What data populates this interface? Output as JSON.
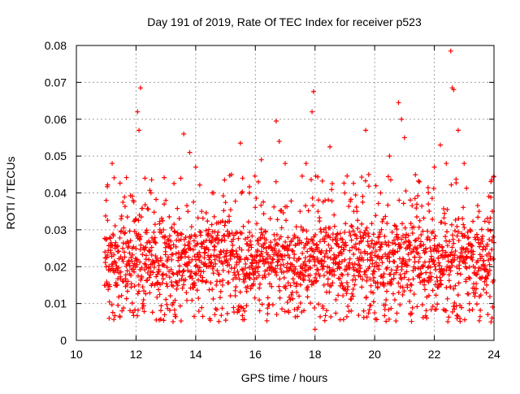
{
  "chart_data": {
    "type": "scatter",
    "title": "Day 191 of 2019, Rate Of TEC Index for receiver p523",
    "xlabel": "GPS time / hours",
    "ylabel": "ROTI / TECUs",
    "xlim": [
      10,
      24
    ],
    "ylim": [
      0,
      0.08
    ],
    "x_ticks": [
      10,
      12,
      14,
      16,
      18,
      20,
      22,
      24
    ],
    "x_tick_labels": [
      "10",
      "12",
      "14",
      "16",
      "18",
      "20",
      "22",
      "24"
    ],
    "y_ticks": [
      0,
      0.01,
      0.02,
      0.03,
      0.04,
      0.05,
      0.06,
      0.07,
      0.08
    ],
    "y_tick_labels": [
      "0",
      "0.01",
      "0.02",
      "0.03",
      "0.04",
      "0.05",
      "0.06",
      "0.07",
      "0.08"
    ],
    "grid": true,
    "marker": "+",
    "color": "#ff0000",
    "data_x_range": [
      10.95,
      24.0
    ],
    "typical_value_range": [
      0.005,
      0.04
    ],
    "series": [
      {
        "name": "ROTI",
        "points": [
          [
            11.0,
            0.038
          ],
          [
            11.0,
            0.02
          ],
          [
            11.05,
            0.015
          ],
          [
            11.1,
            0.006
          ],
          [
            11.2,
            0.048
          ],
          [
            11.3,
            0.025
          ],
          [
            11.5,
            0.033
          ],
          [
            11.7,
            0.015
          ],
          [
            11.9,
            0.038
          ],
          [
            12.05,
            0.062
          ],
          [
            12.1,
            0.057
          ],
          [
            12.15,
            0.0685
          ],
          [
            12.3,
            0.044
          ],
          [
            12.5,
            0.04
          ],
          [
            12.8,
            0.03
          ],
          [
            13.0,
            0.038
          ],
          [
            13.2,
            0.015
          ],
          [
            13.5,
            0.044
          ],
          [
            13.6,
            0.056
          ],
          [
            13.8,
            0.051
          ],
          [
            14.0,
            0.047
          ],
          [
            14.2,
            0.035
          ],
          [
            14.6,
            0.04
          ],
          [
            14.9,
            0.015
          ],
          [
            15.2,
            0.045
          ],
          [
            15.5,
            0.0535
          ],
          [
            15.8,
            0.04
          ],
          [
            16.1,
            0.043
          ],
          [
            16.2,
            0.049
          ],
          [
            16.5,
            0.033
          ],
          [
            16.7,
            0.0595
          ],
          [
            16.8,
            0.054
          ],
          [
            17.0,
            0.048
          ],
          [
            17.3,
            0.02
          ],
          [
            17.5,
            0.035
          ],
          [
            17.7,
            0.048
          ],
          [
            17.9,
            0.062
          ],
          [
            17.95,
            0.0675
          ],
          [
            18.0,
            0.003
          ],
          [
            18.1,
            0.035
          ],
          [
            18.3,
            0.015
          ],
          [
            18.5,
            0.0525
          ],
          [
            18.7,
            0.028
          ],
          [
            19.0,
            0.04
          ],
          [
            19.3,
            0.035
          ],
          [
            19.7,
            0.057
          ],
          [
            19.8,
            0.045
          ],
          [
            20.0,
            0.02
          ],
          [
            20.2,
            0.04
          ],
          [
            20.5,
            0.05
          ],
          [
            20.8,
            0.0645
          ],
          [
            20.9,
            0.06
          ],
          [
            21.0,
            0.055
          ],
          [
            21.2,
            0.007
          ],
          [
            21.5,
            0.043
          ],
          [
            21.8,
            0.037
          ],
          [
            22.0,
            0.047
          ],
          [
            22.2,
            0.053
          ],
          [
            22.4,
            0.048
          ],
          [
            22.55,
            0.0785
          ],
          [
            22.6,
            0.0685
          ],
          [
            22.65,
            0.068
          ],
          [
            22.8,
            0.057
          ],
          [
            23.0,
            0.048
          ],
          [
            23.2,
            0.03
          ],
          [
            23.5,
            0.035
          ],
          [
            23.8,
            0.03
          ],
          [
            23.9,
            0.005
          ],
          [
            24.0,
            0.0445
          ]
        ]
      }
    ]
  }
}
